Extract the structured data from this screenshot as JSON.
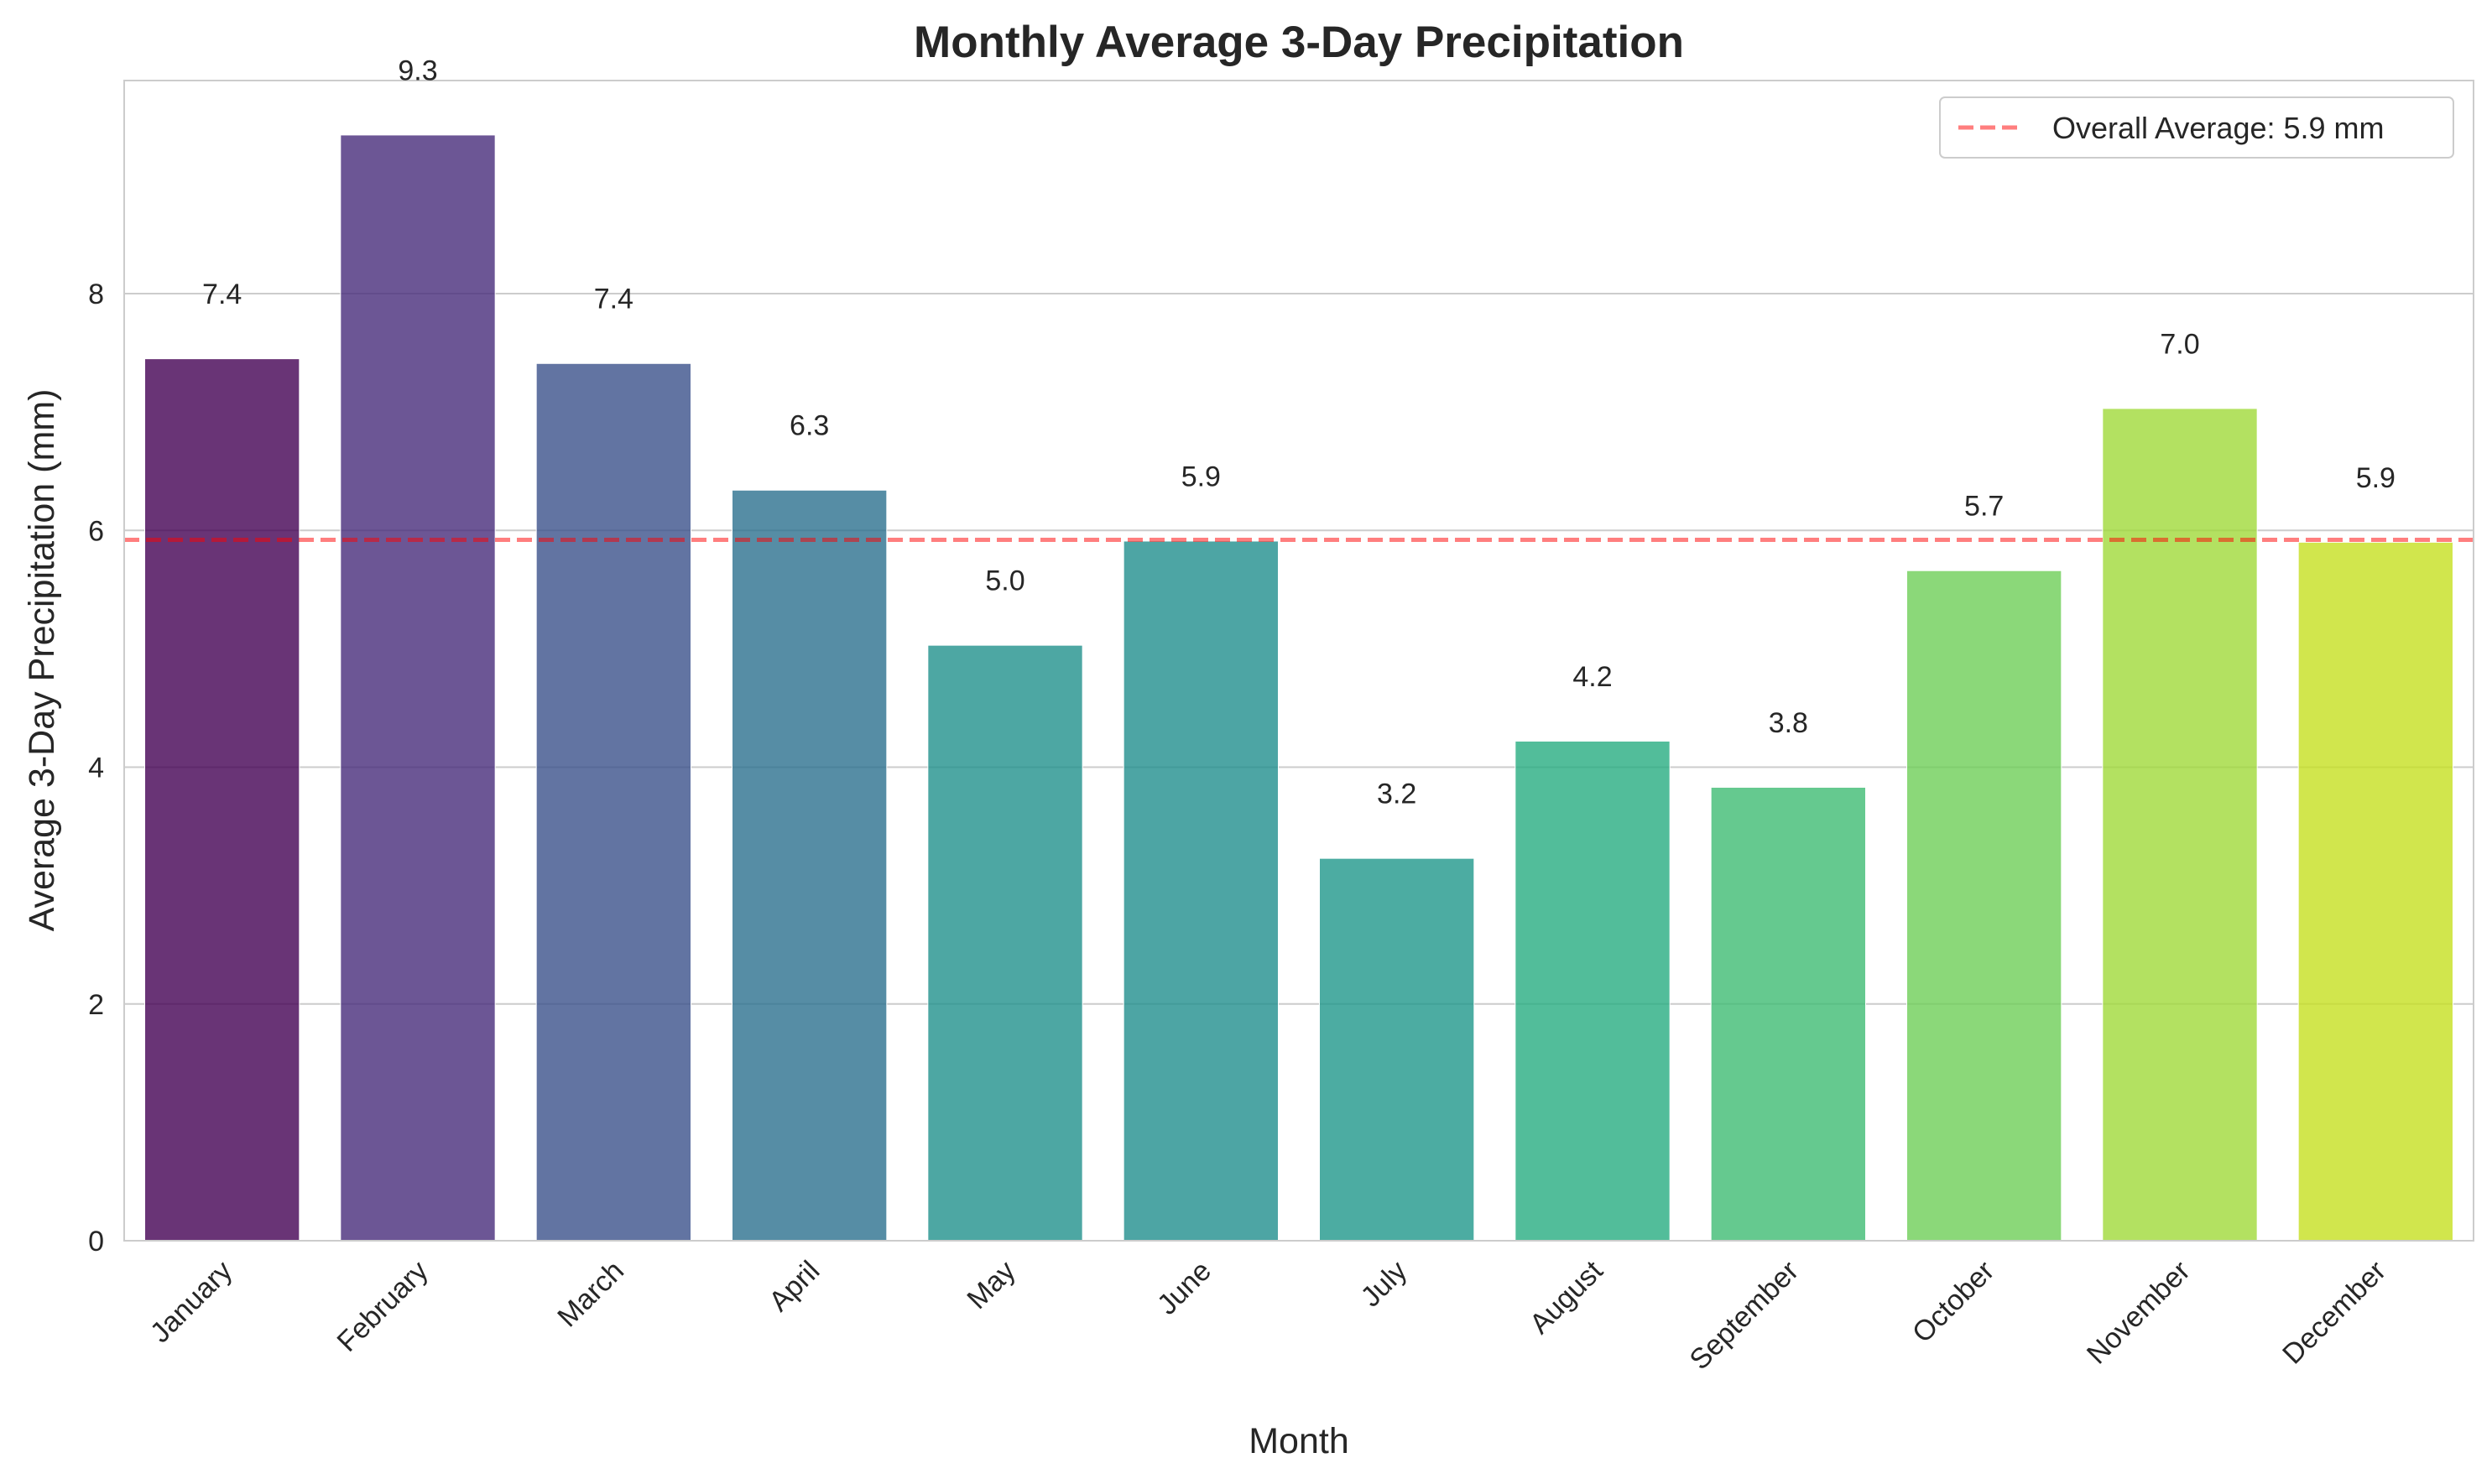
{
  "chart_data": {
    "type": "bar",
    "title": "Monthly Average 3-Day Precipitation",
    "xlabel": "Month",
    "ylabel": "Average 3-Day Precipitation (mm)",
    "categories": [
      "January",
      "February",
      "March",
      "April",
      "May",
      "June",
      "July",
      "August",
      "September",
      "October",
      "November",
      "December"
    ],
    "values": [
      7.45,
      9.34,
      7.41,
      6.34,
      5.03,
      5.91,
      3.23,
      4.22,
      3.83,
      5.66,
      7.03,
      5.9
    ],
    "value_labels": [
      "7.4",
      "9.3",
      "7.4",
      "6.3",
      "5.0",
      "5.9",
      "3.2",
      "4.2",
      "3.8",
      "5.7",
      "7.0",
      "5.9"
    ],
    "bar_colors": [
      "#440154",
      "#472c7a",
      "#3b518b",
      "#2c718e",
      "#21918c",
      "#218f8d",
      "#1f978b",
      "#27ad81",
      "#3fbc73",
      "#6ece58",
      "#a0da39",
      "#c5e021"
    ],
    "ylim": [
      0,
      9.8
    ],
    "yticks": [
      0,
      2,
      4,
      6,
      8
    ],
    "ytick_labels": [
      "0",
      "2",
      "4",
      "6",
      "8"
    ],
    "grid": true,
    "reference_line": {
      "value": 5.92,
      "label": "Overall Average: 5.9 mm",
      "color": "#ff0000",
      "style": "dashed"
    },
    "legend_position": "top-right"
  }
}
